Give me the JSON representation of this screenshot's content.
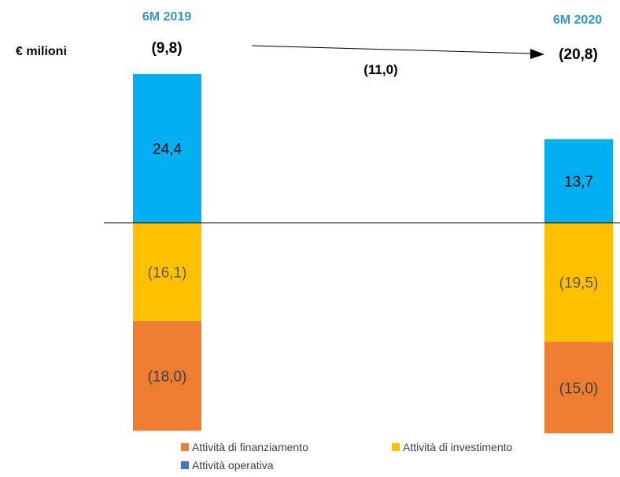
{
  "chart_data": {
    "type": "bar",
    "stacked": true,
    "unit_label": "€ milioni",
    "categories": [
      "6M 2019",
      "6M 2020"
    ],
    "totals": [
      "(9,8)",
      "(20,8)"
    ],
    "change_label": "(11,0)",
    "ylim": [
      -35,
      26
    ],
    "series": [
      {
        "name": "Attività di finanziamento",
        "color": "#ed7d31",
        "values": [
          -18.0,
          -15.0
        ],
        "labels": [
          "(18,0)",
          "(15,0)"
        ]
      },
      {
        "name": "Attività di investimento",
        "color": "#ffc000",
        "values": [
          -16.1,
          -19.5
        ],
        "labels": [
          "(16,1)",
          "(19,5)"
        ]
      },
      {
        "name": "Attività operativa",
        "color": "#00b0f0",
        "legend_color": "#4472c4",
        "values": [
          24.4,
          13.7
        ],
        "labels": [
          "24,4",
          "13,7"
        ]
      }
    ],
    "grid": false,
    "legend_position": "bottom"
  }
}
